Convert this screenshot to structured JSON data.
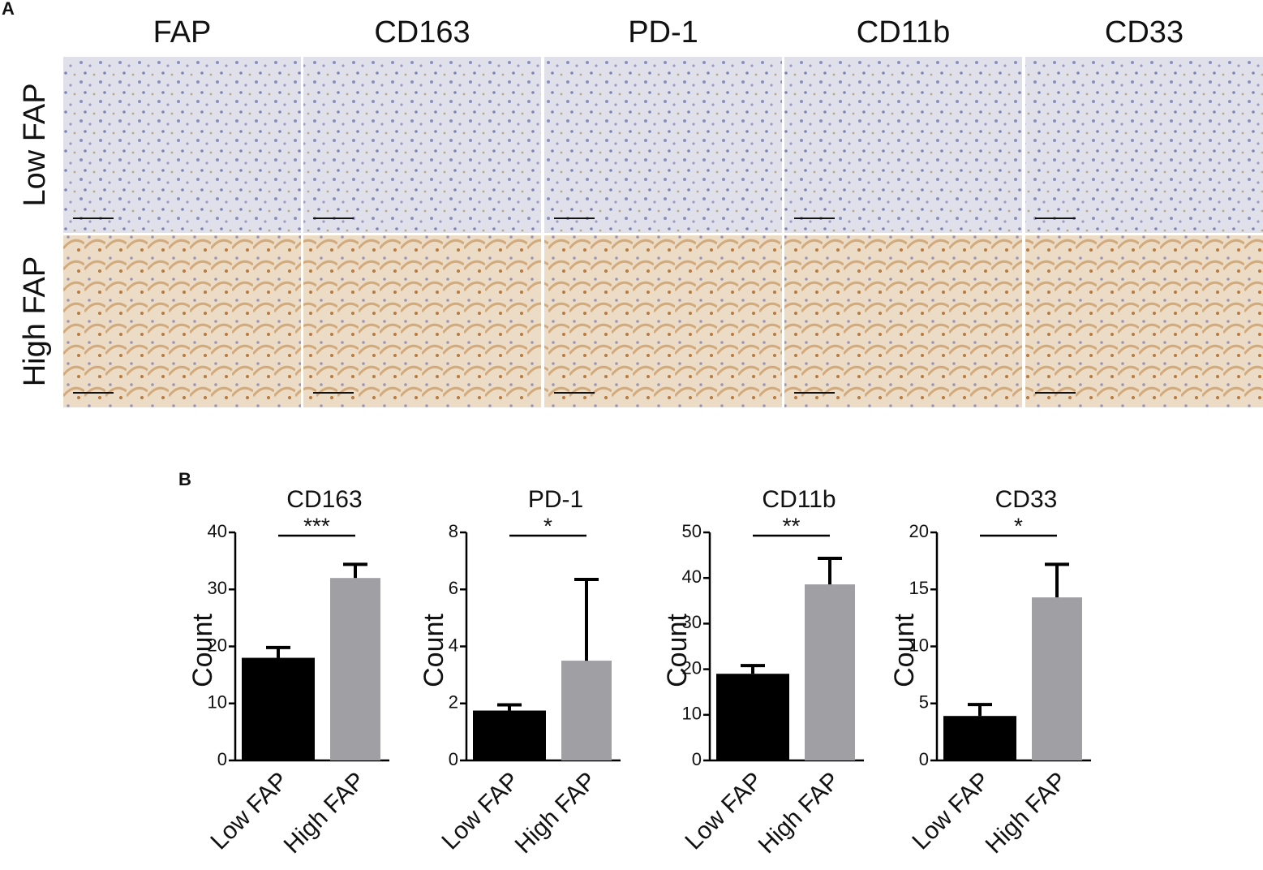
{
  "panel_labels": [
    "A",
    "B"
  ],
  "image_grid": {
    "columns": [
      "FAP",
      "CD163",
      "PD-1",
      "CD11b",
      "CD33"
    ],
    "rows": [
      "Low FAP",
      "High FAP"
    ]
  },
  "chart_data": [
    {
      "type": "bar",
      "title": "CD163",
      "ylabel": "Count",
      "significance": "***",
      "categories": [
        "Low FAP",
        "High FAP"
      ],
      "values": [
        18,
        32
      ],
      "errors": [
        1.8,
        2.4
      ],
      "colors": [
        "#000000",
        "#a0a0a4"
      ],
      "ylim": [
        0,
        40
      ],
      "yticks": [
        0,
        10,
        20,
        30,
        40
      ]
    },
    {
      "type": "bar",
      "title": "PD-1",
      "ylabel": "Count",
      "significance": "*",
      "categories": [
        "Low FAP",
        "High FAP"
      ],
      "values": [
        1.75,
        3.5
      ],
      "errors": [
        0.2,
        2.85
      ],
      "colors": [
        "#000000",
        "#a0a0a4"
      ],
      "ylim": [
        0,
        8
      ],
      "yticks": [
        0,
        2,
        4,
        6,
        8
      ]
    },
    {
      "type": "bar",
      "title": "CD11b",
      "ylabel": "Count",
      "significance": "**",
      "categories": [
        "Low FAP",
        "High FAP"
      ],
      "values": [
        19,
        38.6
      ],
      "errors": [
        1.8,
        5.7
      ],
      "colors": [
        "#000000",
        "#a0a0a4"
      ],
      "ylim": [
        0,
        50
      ],
      "yticks": [
        0,
        10,
        20,
        30,
        40,
        50
      ]
    },
    {
      "type": "bar",
      "title": "CD33",
      "ylabel": "Count",
      "significance": "*",
      "categories": [
        "Low FAP",
        "High FAP"
      ],
      "values": [
        3.9,
        14.3
      ],
      "errors": [
        1.0,
        2.9
      ],
      "colors": [
        "#000000",
        "#a0a0a4"
      ],
      "ylim": [
        0,
        20
      ],
      "yticks": [
        0,
        5,
        10,
        15,
        20
      ]
    }
  ]
}
